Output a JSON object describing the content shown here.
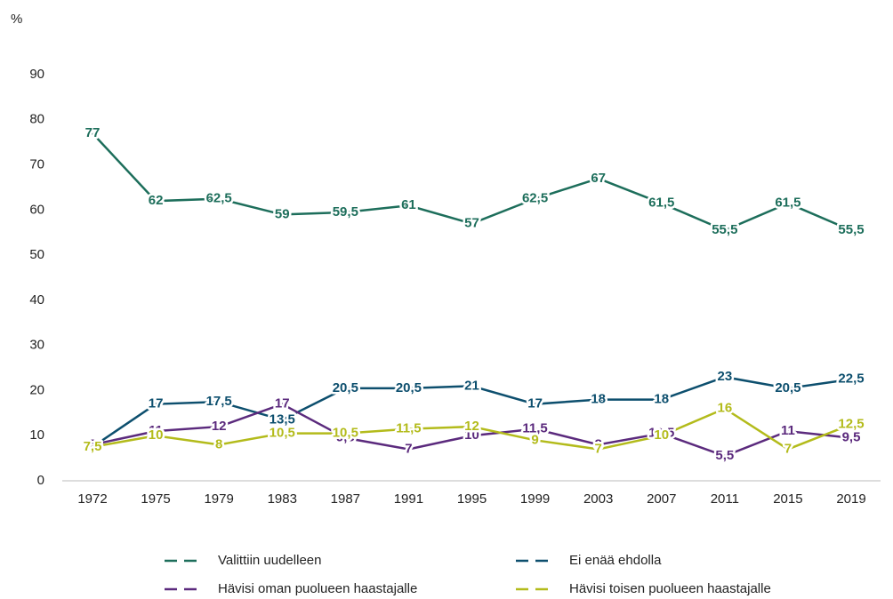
{
  "chart_data": {
    "type": "line",
    "ylabel": "%",
    "categories": [
      "1972",
      "1975",
      "1979",
      "1983",
      "1987",
      "1991",
      "1995",
      "1999",
      "2003",
      "2007",
      "2011",
      "2015",
      "2019"
    ],
    "series": [
      {
        "name": "Valittiin uudelleen",
        "color": "#1d6e5b",
        "values": [
          77,
          62,
          62.5,
          59,
          59.5,
          61,
          57,
          62.5,
          67,
          61.5,
          55.5,
          61.5,
          55.5
        ],
        "value_labels": [
          "77",
          "62",
          "62,5",
          "59",
          "59,5",
          "61",
          "57",
          "62,5",
          "67",
          "61,5",
          "55,5",
          "61,5",
          "55,5"
        ]
      },
      {
        "name": "Ei enää ehdolla",
        "color": "#0d4f6e",
        "values": [
          7.5,
          17,
          17.5,
          13.5,
          20.5,
          20.5,
          21,
          17,
          18,
          18,
          23,
          20.5,
          22.5
        ],
        "value_labels": [
          "7,5",
          "17",
          "17,5",
          "13,5",
          "20,5",
          "20,5",
          "21",
          "17",
          "18",
          "18",
          "23",
          "20,5",
          "22,5"
        ]
      },
      {
        "name": "Hävisi oman puolueen haastajalle",
        "color": "#5b2a7d",
        "values": [
          8,
          11,
          12,
          17,
          9.5,
          7,
          10,
          11.5,
          8,
          10.5,
          5.5,
          11,
          9.5
        ],
        "value_labels": [
          "8",
          "11",
          "12",
          "17",
          "9,5",
          "7",
          "10",
          "11,5",
          "8",
          "10,5",
          "5,5",
          "11",
          "9,5"
        ]
      },
      {
        "name": "Hävisi toisen puolueen haastajalle",
        "color": "#b3bb1b",
        "values": [
          7.5,
          10,
          8,
          10.5,
          10.5,
          11.5,
          12,
          9,
          7,
          10,
          16,
          7,
          12.5
        ],
        "value_labels": [
          "7,5",
          "10",
          "8",
          "10,5",
          "10,5",
          "11,5",
          "12",
          "9",
          "7",
          "10",
          "16",
          "7",
          "12,5"
        ]
      }
    ],
    "ylim": [
      0,
      90
    ],
    "yticks": [
      0,
      10,
      20,
      30,
      40,
      50,
      60,
      70,
      80,
      90
    ],
    "grid": false
  }
}
